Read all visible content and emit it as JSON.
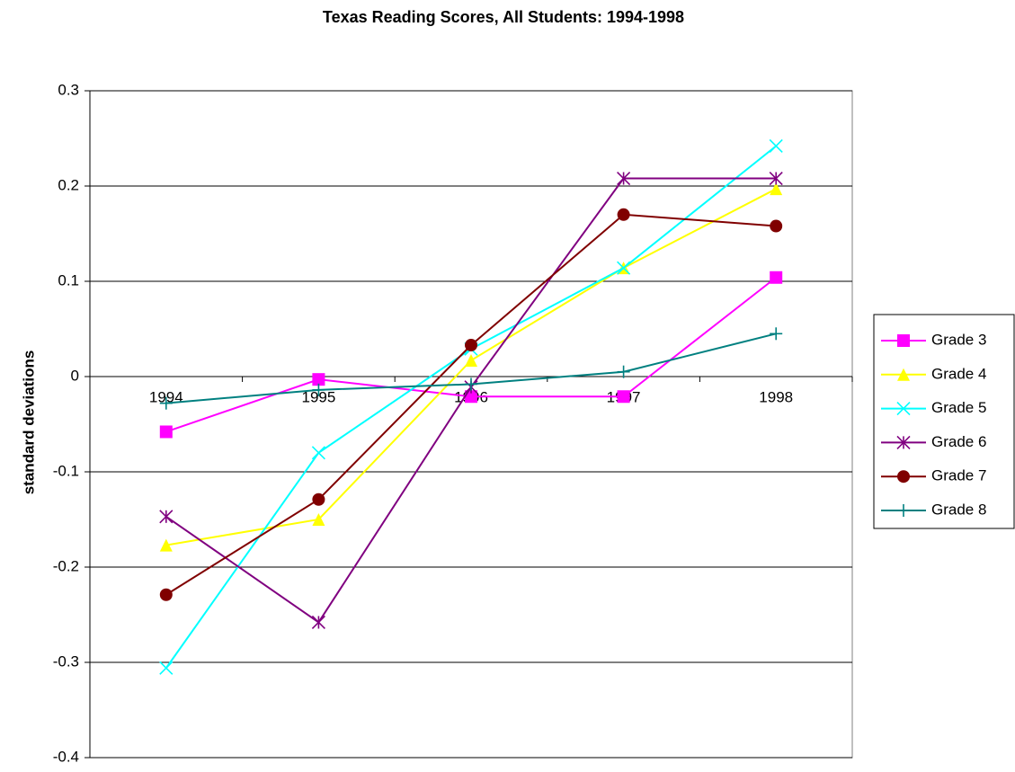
{
  "chart_data": {
    "type": "line",
    "title": "Texas Reading Scores, All Students:  1994-1998",
    "y_label": "standard deviations",
    "categories": [
      "1994",
      "1995",
      "1996",
      "1997",
      "1998"
    ],
    "ylim": [
      -0.4,
      0.3
    ],
    "yticks": [
      -0.4,
      -0.3,
      -0.2,
      -0.1,
      0,
      0.1,
      0.2,
      0.3
    ],
    "grid": true,
    "legend": "right",
    "series": [
      {
        "name": "Grade 3",
        "color": "#ff00ff",
        "marker": "square",
        "values": [
          -0.058,
          -0.003,
          -0.021,
          -0.021,
          0.104
        ]
      },
      {
        "name": "Grade 4",
        "color": "#ffff00",
        "marker": "triangle",
        "values": [
          -0.177,
          -0.15,
          0.017,
          0.114,
          0.197
        ]
      },
      {
        "name": "Grade 5",
        "color": "#00ffff",
        "marker": "x",
        "values": [
          -0.306,
          -0.08,
          0.029,
          0.114,
          0.242
        ]
      },
      {
        "name": "Grade 6",
        "color": "#800080",
        "marker": "asterisk",
        "values": [
          -0.147,
          -0.258,
          -0.011,
          0.208,
          0.208
        ]
      },
      {
        "name": "Grade 7",
        "color": "#800000",
        "marker": "circle",
        "values": [
          -0.229,
          -0.129,
          0.033,
          0.17,
          0.158
        ]
      },
      {
        "name": "Grade 8",
        "color": "#008080",
        "marker": "plus",
        "values": [
          -0.028,
          -0.014,
          -0.008,
          0.005,
          0.045
        ]
      }
    ]
  }
}
